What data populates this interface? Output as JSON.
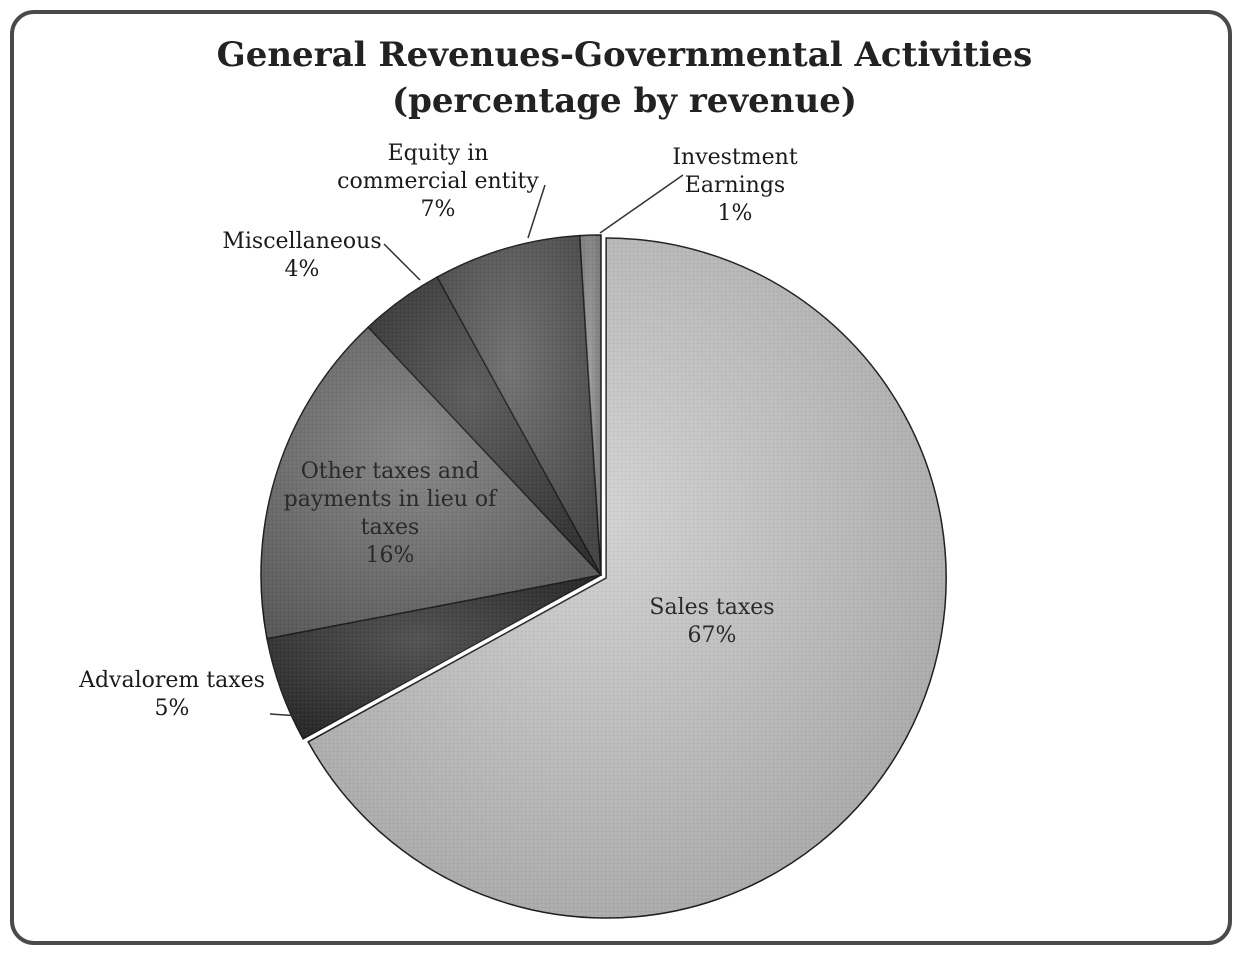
{
  "chart_data": {
    "type": "pie",
    "title": "General Revenues-Governmental Activities",
    "subtitle": "(percentage by revenue)",
    "slices": [
      {
        "name": "Sales taxes",
        "value": 67,
        "label_lines": [
          "Sales taxes",
          "67%"
        ],
        "color": "#c9c9c9"
      },
      {
        "name": "Advalorem taxes",
        "value": 5,
        "label_lines": [
          "Advalorem taxes",
          "5%"
        ],
        "color": "#2e2e2e"
      },
      {
        "name": "Other taxes and payments in lieu of taxes",
        "value": 16,
        "label_lines": [
          "Other taxes and",
          "payments in lieu of",
          "taxes",
          "16%"
        ],
        "color": "#6e6e6e"
      },
      {
        "name": "Miscellaneous",
        "value": 4,
        "label_lines": [
          "Miscellaneous",
          "4%"
        ],
        "color": "#3c3c3c"
      },
      {
        "name": "Equity in commercial entity",
        "value": 7,
        "label_lines": [
          "Equity in",
          "commercial entity",
          "7%"
        ],
        "color": "#555555"
      },
      {
        "name": "Investment Earnings",
        "value": 1,
        "label_lines": [
          "Investment",
          "Earnings",
          "1%"
        ],
        "color": "#8a8a8a"
      }
    ]
  }
}
